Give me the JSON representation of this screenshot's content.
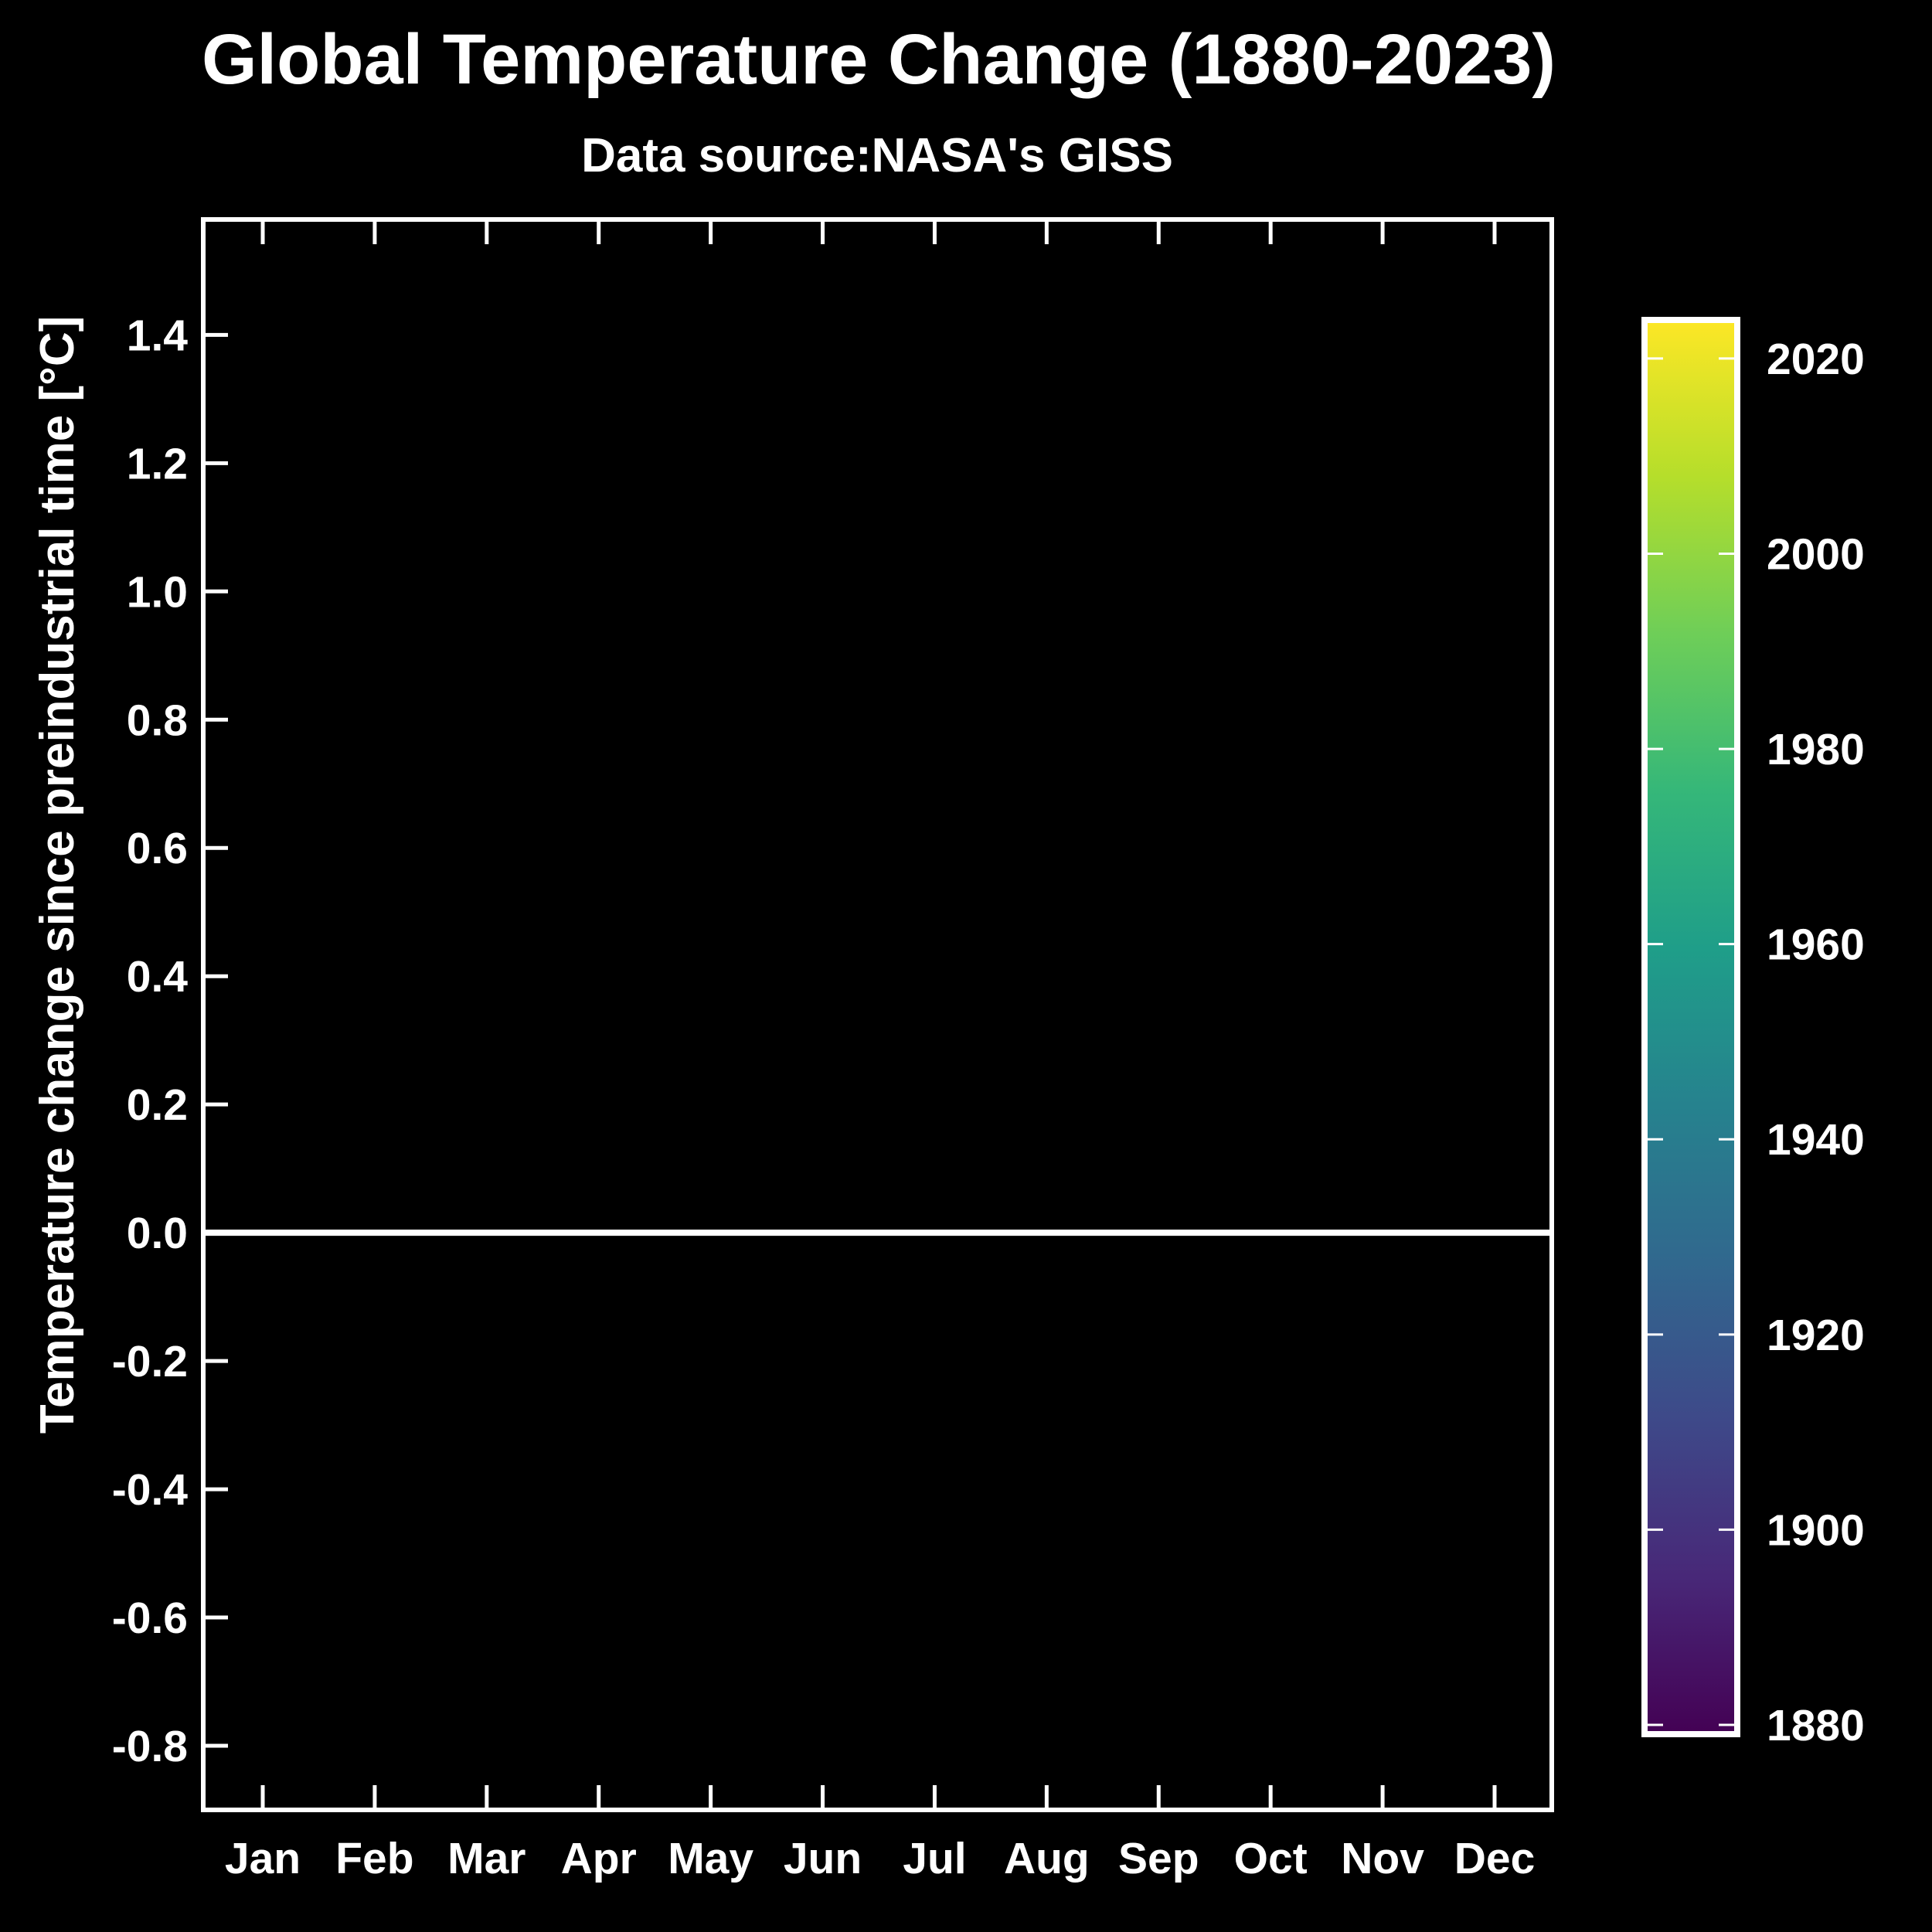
{
  "chart_data": {
    "type": "line",
    "title": "Global Temperature Change (1880-2023)",
    "subtitle": "Data source:NASA's GISS",
    "xlabel": "",
    "ylabel": "Temperature change since preindustrial time [°C]",
    "categories": [
      "Jan",
      "Feb",
      "Mar",
      "Apr",
      "May",
      "Jun",
      "Jul",
      "Aug",
      "Sep",
      "Oct",
      "Nov",
      "Dec"
    ],
    "ylim": [
      -0.9,
      1.58
    ],
    "yticks": [
      1.4,
      1.2,
      1.0,
      0.8,
      0.6,
      0.4,
      0.2,
      0.0,
      -0.2,
      -0.4,
      -0.6,
      -0.8
    ],
    "ytick_labels": [
      "1.4",
      "1.2",
      "1.0",
      "0.8",
      "0.6",
      "0.4",
      "0.2",
      "0.0",
      "-0.2",
      "-0.4",
      "-0.6",
      "-0.8"
    ],
    "reference_line": 0.0,
    "series": [],
    "grid": false,
    "colorbar": {
      "label": "",
      "range": [
        1880,
        2023
      ],
      "ticks": [
        2020,
        2000,
        1980,
        1960,
        1940,
        1920,
        1900,
        1880
      ],
      "tick_labels": [
        "2020",
        "2000",
        "1980",
        "1960",
        "1940",
        "1920",
        "1900",
        "1880"
      ],
      "colormap": "viridis",
      "colors": [
        "#440154",
        "#482878",
        "#3e4989",
        "#31688e",
        "#26828e",
        "#1f9e89",
        "#35b779",
        "#6ece58",
        "#b5de2b",
        "#fde725"
      ]
    },
    "colors": {
      "background": "#000000",
      "foreground": "#ffffff"
    }
  }
}
